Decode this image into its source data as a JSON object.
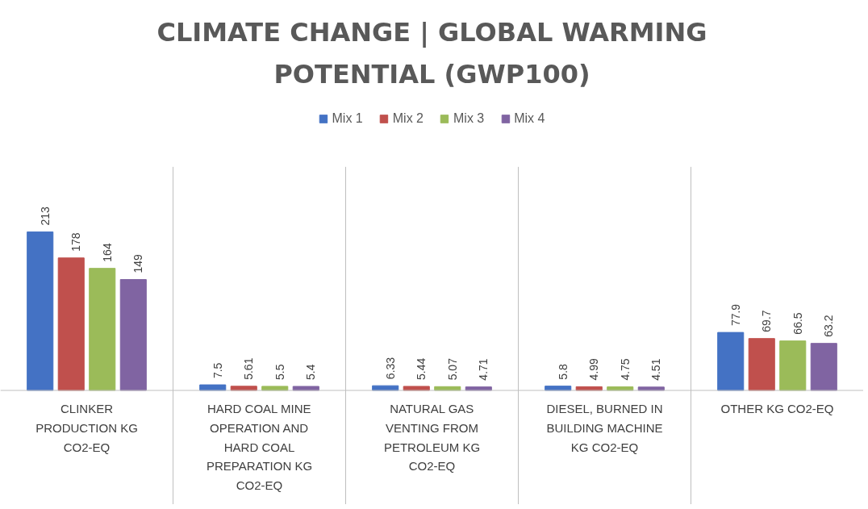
{
  "chart_data": {
    "type": "bar",
    "title": "CLIMATE CHANGE | GLOBAL WARMING POTENTIAL (GWP100)",
    "categories": [
      "CLINKER PRODUCTION KG CO2-EQ",
      "HARD COAL MINE OPERATION AND HARD COAL PREPARATION KG CO2-EQ",
      "NATURAL GAS VENTING FROM PETROLEUM KG CO2-EQ",
      "DIESEL, BURNED IN BUILDING MACHINE KG CO2-EQ",
      "OTHER KG CO2-EQ"
    ],
    "series": [
      {
        "name": "Mix 1",
        "color": "#4472c4",
        "values": [
          213,
          7.5,
          6.33,
          5.8,
          77.9
        ]
      },
      {
        "name": "Mix 2",
        "color": "#c0504d",
        "values": [
          178,
          5.61,
          5.44,
          4.99,
          69.7
        ]
      },
      {
        "name": "Mix 3",
        "color": "#9bbb59",
        "values": [
          164,
          5.5,
          5.07,
          4.75,
          66.5
        ]
      },
      {
        "name": "Mix 4",
        "color": "#8064a2",
        "values": [
          149,
          5.4,
          4.71,
          4.51,
          63.2
        ]
      }
    ],
    "data_labels": true,
    "legend": "top",
    "grid": "x",
    "tick_labels": "x"
  }
}
